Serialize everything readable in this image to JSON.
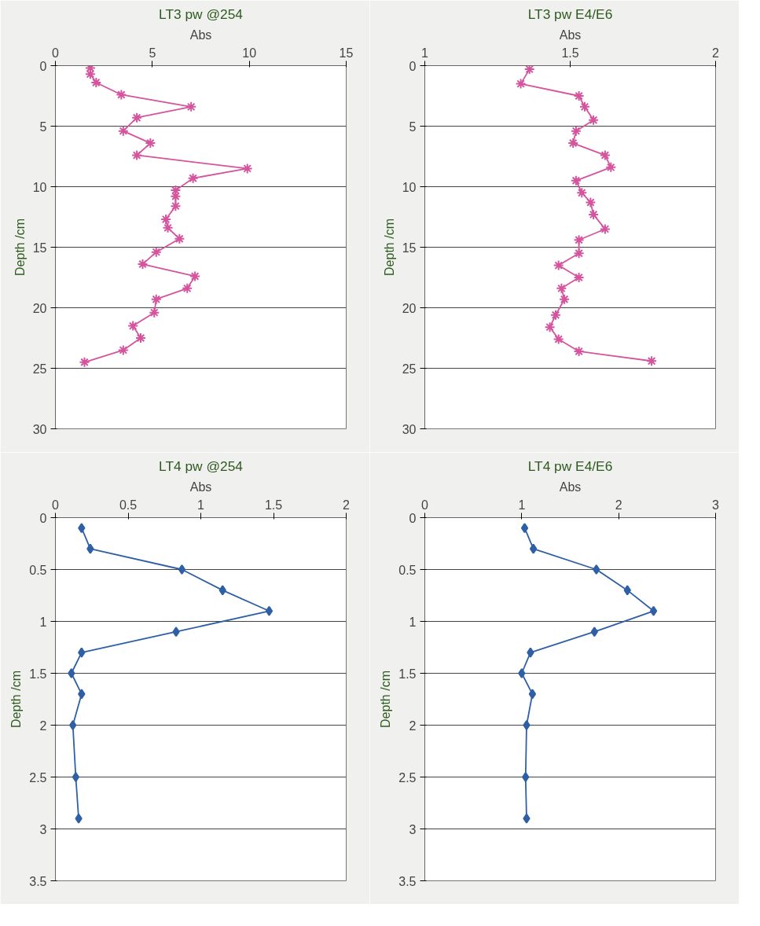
{
  "chart_data": [
    {
      "type": "line",
      "title": "LT3 pw @254",
      "xlabel": "Abs",
      "ylabel": "Depth /cm",
      "xlim": [
        0,
        15
      ],
      "xticks": [
        0,
        5,
        10,
        15
      ],
      "ylim": [
        30,
        0
      ],
      "yticks": [
        0,
        5,
        10,
        15,
        20,
        25,
        30
      ],
      "grid": "y",
      "marker": "cross",
      "line_style": "solid",
      "series": [
        {
          "color": "#d4549e",
          "x": [
            1.8,
            1.8,
            2.1,
            3.4,
            7.0,
            4.2,
            3.5,
            4.9,
            4.2,
            9.9,
            7.1,
            6.2,
            6.2,
            6.2,
            5.7,
            5.8,
            6.4,
            5.2,
            4.5,
            7.2,
            6.8,
            5.2,
            5.1,
            4.0,
            4.4,
            3.5,
            1.5
          ],
          "values": [
            0.2,
            0.7,
            1.4,
            2.4,
            3.4,
            4.3,
            5.4,
            6.4,
            7.4,
            8.5,
            9.3,
            10.3,
            10.8,
            11.6,
            12.7,
            13.4,
            14.3,
            15.4,
            16.4,
            17.4,
            18.4,
            19.3,
            20.4,
            21.5,
            22.5,
            23.5,
            24.5
          ]
        }
      ]
    },
    {
      "type": "line",
      "title": "LT3 pw E4/E6",
      "xlabel": "Abs",
      "ylabel": "Depth /cm",
      "xlim": [
        1,
        2
      ],
      "xticks": [
        1,
        1.5,
        2
      ],
      "ylim": [
        30,
        0
      ],
      "yticks": [
        0,
        5,
        10,
        15,
        20,
        25,
        30
      ],
      "grid": "y",
      "marker": "cross",
      "line_style": "solid",
      "series": [
        {
          "color": "#d4549e",
          "x": [
            1.36,
            1.33,
            1.53,
            1.55,
            1.58,
            1.52,
            1.51,
            1.62,
            1.64,
            1.52,
            1.54,
            1.57,
            1.58,
            1.62,
            1.53,
            1.53,
            1.46,
            1.53,
            1.47,
            1.48,
            1.45,
            1.43,
            1.46,
            1.53,
            1.78
          ],
          "values": [
            0.3,
            1.5,
            2.5,
            3.4,
            4.5,
            5.4,
            6.4,
            7.4,
            8.4,
            9.5,
            10.5,
            11.3,
            12.3,
            13.5,
            14.4,
            15.5,
            16.5,
            17.5,
            18.4,
            19.3,
            20.6,
            21.6,
            22.6,
            23.6,
            24.4
          ]
        }
      ]
    },
    {
      "type": "line",
      "title": "LT4 pw @254",
      "xlabel": "Abs",
      "ylabel": "Depth /cm",
      "xlim": [
        0,
        2
      ],
      "xticks": [
        0,
        0.5,
        1,
        1.5,
        2
      ],
      "ylim": [
        3.5,
        0
      ],
      "yticks": [
        0,
        0.5,
        1,
        1.5,
        2,
        2.5,
        3,
        3.5
      ],
      "grid": "y",
      "marker": "diamond",
      "line_style": "solid",
      "series": [
        {
          "color": "#2f5fa5",
          "x": [
            0.18,
            0.24,
            0.87,
            1.15,
            1.47,
            0.83,
            0.18,
            0.11,
            0.18,
            0.12,
            0.14,
            0.16
          ],
          "values": [
            0.1,
            0.3,
            0.5,
            0.7,
            0.9,
            1.1,
            1.3,
            1.5,
            1.7,
            2.0,
            2.5,
            2.9
          ]
        }
      ]
    },
    {
      "type": "line",
      "title": "LT4 pw E4/E6",
      "xlabel": "Abs",
      "ylabel": "Depth /cm",
      "xlim": [
        0,
        3
      ],
      "xticks": [
        0,
        1,
        2,
        3
      ],
      "ylim": [
        3.5,
        0
      ],
      "yticks": [
        0,
        0.5,
        1,
        1.5,
        2,
        2.5,
        3,
        3.5
      ],
      "grid": "y",
      "marker": "diamond",
      "line_style": "solid",
      "series": [
        {
          "color": "#2f5fa5",
          "x": [
            1.03,
            1.12,
            1.77,
            2.09,
            2.36,
            1.75,
            1.09,
            1.0,
            1.11,
            1.05,
            1.04,
            1.05
          ],
          "values": [
            0.1,
            0.3,
            0.5,
            0.7,
            0.9,
            1.1,
            1.3,
            1.5,
            1.7,
            2.0,
            2.5,
            2.9
          ]
        }
      ]
    }
  ]
}
